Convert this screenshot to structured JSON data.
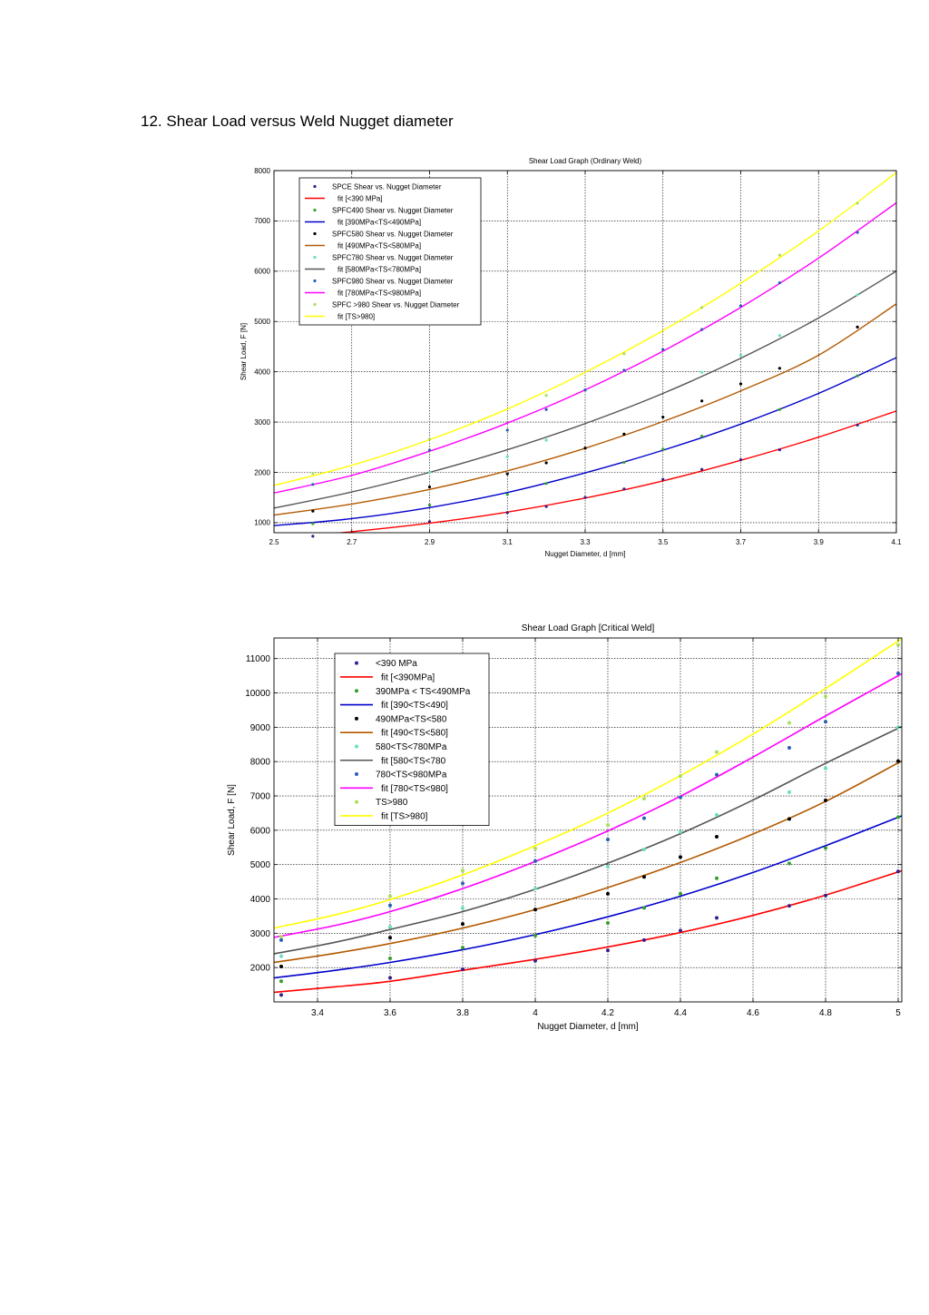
{
  "document": {
    "heading": "12. Shear Load versus Weld Nugget diameter"
  },
  "chart_data": [
    {
      "type": "scatter",
      "title": "Shear Load Graph (Ordinary Weld)",
      "xlabel": "Nugget Diameter, d [mm]",
      "ylabel": "Shear Load, F [N]",
      "xlim": [
        2.5,
        4.1
      ],
      "ylim": [
        800,
        8000
      ],
      "xticks": [
        2.5,
        2.7,
        2.9,
        3.1,
        3.3,
        3.5,
        3.7,
        3.9,
        4.1
      ],
      "xtick_labels": [
        "2.5",
        "2.7",
        "2.9",
        "3.1",
        "3.3",
        "3.5",
        "3.7",
        "3.9",
        "4.1"
      ],
      "yticks": [
        1000,
        2000,
        3000,
        4000,
        5000,
        6000,
        7000,
        8000
      ],
      "grid": true,
      "legend_position": "top-left",
      "series": [
        {
          "name": "SPCE Shear vs. Nugget Diameter",
          "fit_name": "fit [<390 MPa]",
          "dot_color": "#3a1e8c",
          "line_color": "#ff0000",
          "x": [
            2.6,
            2.9,
            3.1,
            3.2,
            3.3,
            3.4,
            3.5,
            3.6,
            3.7,
            3.8,
            4.0
          ],
          "y": [
            730,
            1020,
            1200,
            1320,
            1500,
            1670,
            1860,
            2060,
            2250,
            2450,
            2940
          ],
          "fit_x": [
            2.5,
            2.7,
            2.9,
            3.1,
            3.3,
            3.5,
            3.7,
            3.9,
            4.1
          ],
          "fit_y": [
            680,
            820,
            990,
            1210,
            1490,
            1830,
            2240,
            2700,
            3220
          ]
        },
        {
          "name": "SPFC490 Shear vs. Nugget Diameter",
          "fit_name": "fit [390MPa<TS<490MPa]",
          "dot_color": "#33a02c",
          "line_color": "#0000cc",
          "x": [
            2.6,
            2.9,
            3.1,
            3.2,
            3.4,
            3.5,
            3.6,
            3.8,
            4.0
          ],
          "y": [
            980,
            1350,
            1560,
            1780,
            2200,
            2460,
            2720,
            3250,
            3920
          ],
          "fit_x": [
            2.5,
            2.7,
            2.9,
            3.1,
            3.3,
            3.5,
            3.7,
            3.9,
            4.1
          ],
          "fit_y": [
            940,
            1080,
            1300,
            1600,
            1990,
            2440,
            2960,
            3570,
            4280
          ]
        },
        {
          "name": "SPFC580 Shear vs. Nugget Diameter",
          "fit_name": "fit [490MPa<TS<580MPa]",
          "dot_color": "#000000",
          "line_color": "#b35900",
          "x": [
            2.6,
            2.9,
            3.1,
            3.2,
            3.3,
            3.4,
            3.5,
            3.6,
            3.7,
            3.8,
            4.0
          ],
          "y": [
            1230,
            1710,
            1970,
            2190,
            2480,
            2760,
            3100,
            3420,
            3760,
            4070,
            4890
          ],
          "fit_x": [
            2.5,
            2.7,
            2.9,
            3.1,
            3.3,
            3.5,
            3.7,
            3.9,
            4.1
          ],
          "fit_y": [
            1150,
            1370,
            1660,
            2030,
            2480,
            3010,
            3620,
            4330,
            5350
          ]
        },
        {
          "name": "SPFC780 Shear vs. Nugget Diameter",
          "fit_name": "fit [580MPa<TS<780MPa]",
          "dot_color": "#66e0c0",
          "line_color": "#555555",
          "x": [
            2.9,
            3.1,
            3.2,
            3.6,
            3.7,
            3.8,
            4.0
          ],
          "y": [
            2000,
            2310,
            2640,
            3990,
            4330,
            4720,
            5530
          ],
          "fit_x": [
            2.5,
            2.7,
            2.9,
            3.1,
            3.3,
            3.5,
            3.7,
            3.9,
            4.1
          ],
          "fit_y": [
            1290,
            1610,
            2000,
            2450,
            2970,
            3570,
            4270,
            5070,
            6000
          ]
        },
        {
          "name": "SPFC980 Shear vs. Nugget Diameter",
          "fit_name": "fit [780MPa<TS<980MPa]",
          "dot_color": "#2b5fb4",
          "line_color": "#ff00ff",
          "x": [
            2.6,
            2.9,
            3.1,
            3.2,
            3.3,
            3.4,
            3.5,
            3.6,
            3.7,
            3.8,
            4.0
          ],
          "y": [
            1760,
            2440,
            2840,
            3250,
            3640,
            4030,
            4440,
            4840,
            5310,
            5770,
            6770
          ],
          "fit_x": [
            2.5,
            2.7,
            2.9,
            3.1,
            3.3,
            3.5,
            3.7,
            3.9,
            4.1
          ],
          "fit_y": [
            1590,
            1940,
            2420,
            2980,
            3640,
            4410,
            5280,
            6260,
            7360
          ]
        },
        {
          "name": "SPFC >980 Shear vs. Nugget Diameter",
          "fit_name": "fit [TS>980]",
          "dot_color": "#a8e05a",
          "line_color": "#ffff00",
          "x": [
            2.6,
            2.9,
            3.2,
            3.4,
            3.6,
            3.8,
            4.0
          ],
          "y": [
            1980,
            2660,
            3530,
            4360,
            5280,
            6320,
            7350
          ],
          "fit_x": [
            2.5,
            2.7,
            2.9,
            3.1,
            3.3,
            3.5,
            3.7,
            3.9,
            4.1
          ],
          "fit_y": [
            1740,
            2140,
            2650,
            3260,
            3990,
            4820,
            5760,
            6800,
            7960
          ]
        }
      ]
    },
    {
      "type": "scatter",
      "title": "Shear Load Graph [Critical Weld]",
      "xlabel": "Nugget Diameter, d [mm]",
      "ylabel": "Shear Load, F [N]",
      "xlim": [
        3.28,
        5.01
      ],
      "ylim": [
        1000,
        11600
      ],
      "xticks": [
        3.4,
        3.6,
        3.8,
        4.0,
        4.2,
        4.4,
        4.6,
        4.8,
        5.0
      ],
      "xtick_labels": [
        "3.4",
        "3.6",
        "3.8",
        "4",
        "4.2",
        "4.4",
        "4.6",
        "4.8",
        "5"
      ],
      "yticks": [
        2000,
        3000,
        4000,
        5000,
        6000,
        7000,
        8000,
        9000,
        10000,
        11000
      ],
      "grid": true,
      "legend_position": "top-left",
      "series": [
        {
          "name": "<390 MPa",
          "fit_name": "fit [<390MPa]",
          "dot_color": "#3a1e8c",
          "line_color": "#ff0000",
          "x": [
            3.3,
            3.6,
            3.8,
            4.0,
            4.2,
            4.3,
            4.4,
            4.5,
            4.7,
            4.8,
            5.0
          ],
          "y": [
            1200,
            1700,
            1950,
            2200,
            2500,
            2800,
            3080,
            3450,
            3800,
            4100,
            4800
          ],
          "fit_x": [
            3.28,
            3.45,
            3.6,
            3.8,
            4.0,
            4.2,
            4.4,
            4.6,
            4.8,
            5.01
          ],
          "fit_y": [
            1280,
            1440,
            1600,
            1920,
            2240,
            2600,
            3020,
            3520,
            4110,
            4820
          ]
        },
        {
          "name": "390MPa < TS<490MPa",
          "fit_name": "fit [390<TS<490]",
          "dot_color": "#33a02c",
          "line_color": "#0000cc",
          "x": [
            3.3,
            3.6,
            3.8,
            4.0,
            4.2,
            4.3,
            4.4,
            4.5,
            4.7,
            4.8,
            5.0
          ],
          "y": [
            1600,
            2270,
            2580,
            2930,
            3300,
            3740,
            4150,
            4600,
            5030,
            5480,
            6380
          ],
          "fit_x": [
            3.28,
            3.45,
            3.6,
            3.8,
            4.0,
            4.2,
            4.4,
            4.6,
            4.8,
            5.01
          ],
          "fit_y": [
            1700,
            1920,
            2150,
            2520,
            2960,
            3480,
            4080,
            4770,
            5550,
            6420
          ]
        },
        {
          "name": "490MPa<TS<580",
          "fit_name": "fit [490<TS<580]",
          "dot_color": "#000000",
          "line_color": "#b35900",
          "x": [
            3.3,
            3.6,
            3.8,
            4.0,
            4.2,
            4.3,
            4.4,
            4.5,
            4.7,
            4.8,
            5.0
          ],
          "y": [
            2030,
            2870,
            3270,
            3690,
            4150,
            4640,
            5220,
            5810,
            6330,
            6870,
            8010
          ],
          "fit_x": [
            3.28,
            3.45,
            3.6,
            3.8,
            4.0,
            4.2,
            4.4,
            4.6,
            4.8,
            5.01
          ],
          "fit_y": [
            2150,
            2420,
            2700,
            3150,
            3690,
            4330,
            5060,
            5890,
            6840,
            8020
          ]
        },
        {
          "name": "580<TS<780MPa",
          "fit_name": "fit [580<TS<780",
          "dot_color": "#66e0c0",
          "line_color": "#555555",
          "x": [
            3.3,
            3.6,
            3.8,
            4.0,
            4.2,
            4.3,
            4.4,
            4.5,
            4.7,
            4.8,
            5.0
          ],
          "y": [
            2330,
            3180,
            3730,
            4300,
            4940,
            5440,
            5950,
            6450,
            7110,
            7800,
            9000
          ],
          "fit_x": [
            3.28,
            3.45,
            3.6,
            3.8,
            4.0,
            4.2,
            4.4,
            4.6,
            4.8,
            5.01
          ],
          "fit_y": [
            2400,
            2740,
            3110,
            3630,
            4280,
            5040,
            5900,
            6880,
            7950,
            9020
          ]
        },
        {
          "name": "780<TS<980MPa",
          "fit_name": "fit [780<TS<980]",
          "dot_color": "#2b5fb4",
          "line_color": "#ff00ff",
          "x": [
            3.3,
            3.6,
            3.8,
            4.0,
            4.2,
            4.3,
            4.4,
            4.5,
            4.7,
            4.8,
            5.0
          ],
          "y": [
            2800,
            3810,
            4450,
            5100,
            5730,
            6350,
            6960,
            7620,
            8400,
            9160,
            10570
          ],
          "fit_x": [
            3.28,
            3.45,
            3.6,
            3.8,
            4.0,
            4.2,
            4.4,
            4.6,
            4.8,
            5.01
          ],
          "fit_y": [
            2880,
            3230,
            3630,
            4300,
            5090,
            5980,
            6990,
            8130,
            9330,
            10560
          ]
        },
        {
          "name": "TS>980",
          "fit_name": "fit [TS>980]",
          "dot_color": "#a8e05a",
          "line_color": "#ffff00",
          "x": [
            3.3,
            3.6,
            3.8,
            4.0,
            4.2,
            4.3,
            4.4,
            4.5,
            4.7,
            4.8,
            5.0
          ],
          "y": [
            2900,
            4080,
            4830,
            5470,
            6150,
            6920,
            7580,
            8280,
            9130,
            9900,
            11400
          ],
          "fit_x": [
            3.28,
            3.45,
            3.6,
            3.8,
            4.0,
            4.2,
            4.4,
            4.6,
            4.8,
            5.01
          ],
          "fit_y": [
            3150,
            3540,
            3980,
            4700,
            5550,
            6500,
            7590,
            8800,
            10130,
            11580
          ]
        }
      ]
    }
  ]
}
